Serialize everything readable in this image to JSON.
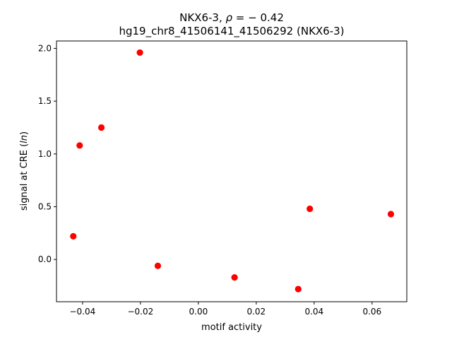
{
  "chart_data": {
    "type": "scatter",
    "title_line1": "NKX6-3, ρ = − 0.42",
    "title_line2": "hg19_chr8_41506141_41506292 (NKX6-3)",
    "xlabel": "motif activity",
    "ylabel": "signal at CRE (ln)",
    "xlim": [
      -0.049,
      0.072
    ],
    "ylim": [
      -0.4,
      2.07
    ],
    "xticks": [
      -0.04,
      -0.02,
      0.0,
      0.02,
      0.04,
      0.06
    ],
    "xtick_labels": [
      "−0.04",
      "−0.02",
      "0.00",
      "0.02",
      "0.04",
      "0.06"
    ],
    "yticks": [
      0.0,
      0.5,
      1.0,
      1.5,
      2.0
    ],
    "ytick_labels": [
      "0.0",
      "0.5",
      "1.0",
      "1.5",
      "2.0"
    ],
    "marker_color": "#ff0000",
    "grid": false,
    "points": [
      {
        "x": -0.0432,
        "y": 0.22
      },
      {
        "x": -0.041,
        "y": 1.08
      },
      {
        "x": -0.0335,
        "y": 1.25
      },
      {
        "x": -0.0202,
        "y": 1.96
      },
      {
        "x": -0.014,
        "y": -0.06
      },
      {
        "x": 0.0125,
        "y": -0.17
      },
      {
        "x": 0.0345,
        "y": -0.28
      },
      {
        "x": 0.0385,
        "y": 0.48
      },
      {
        "x": 0.0665,
        "y": 0.43
      }
    ]
  }
}
